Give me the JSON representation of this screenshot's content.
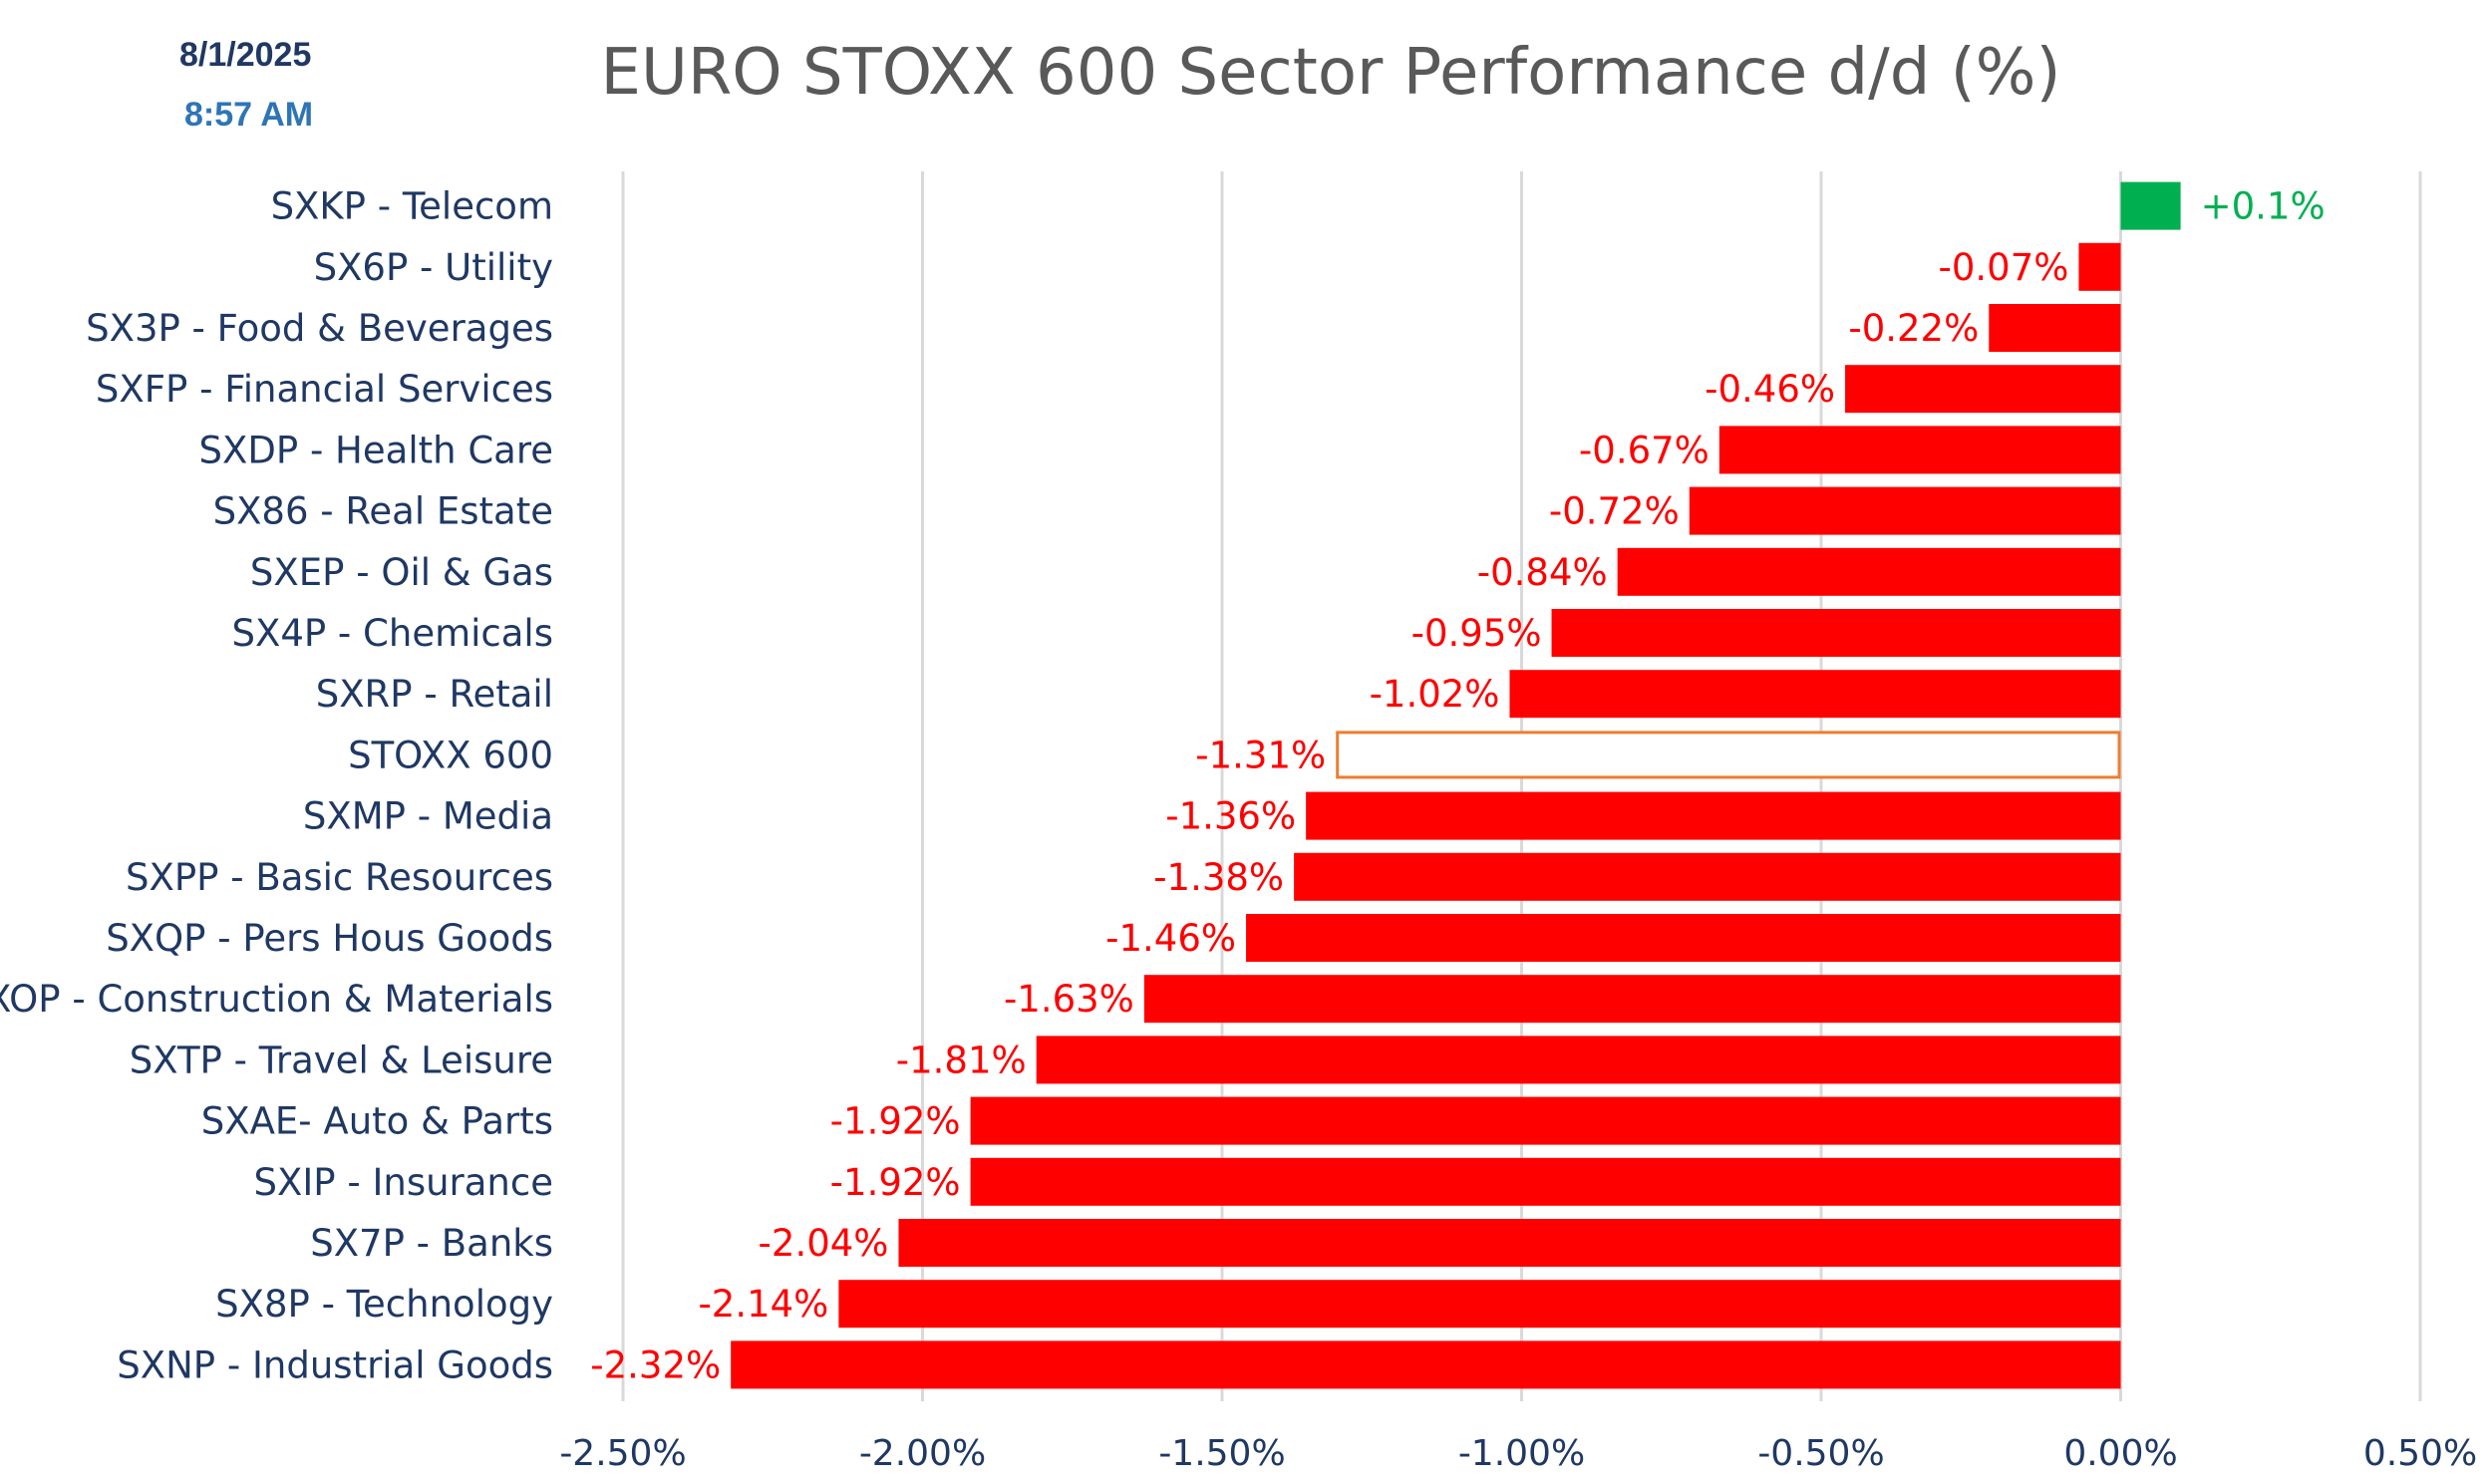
{
  "header": {
    "date": "8/1/2025",
    "time": "8:57 AM"
  },
  "chart_data": {
    "type": "bar",
    "orientation": "horizontal",
    "title": "EURO STOXX  600 Sector Performance d/d (%)",
    "categories": [
      "SXKP - Telecom",
      "SX6P - Utility",
      "SX3P - Food & Beverages",
      "SXFP - Financial Services",
      "SXDP - Health Care",
      "SX86 - Real Estate",
      "SXEP - Oil & Gas",
      "SX4P - Chemicals",
      "SXRP - Retail",
      "STOXX 600",
      "SXMP - Media",
      "SXPP - Basic Resources",
      "SXQP - Pers Hous Goods",
      "SXOP - Construction & Materials",
      "SXTP - Travel & Leisure",
      "SXAE- Auto & Parts",
      "SXIP - Insurance",
      "SX7P - Banks",
      "SX8P - Technology",
      "SXNP - Industrial Goods"
    ],
    "values": [
      0.1,
      -0.07,
      -0.22,
      -0.46,
      -0.67,
      -0.72,
      -0.84,
      -0.95,
      -1.02,
      -1.31,
      -1.36,
      -1.38,
      -1.46,
      -1.63,
      -1.81,
      -1.92,
      -1.92,
      -2.04,
      -2.14,
      -2.32
    ],
    "data_labels": [
      "+0.1%",
      "-0.07%",
      "-0.22%",
      "-0.46%",
      "-0.67%",
      "-0.72%",
      "-0.84%",
      "-0.95%",
      "-1.02%",
      "-1.31%",
      "-1.36%",
      "-1.38%",
      "-1.46%",
      "-1.63%",
      "-1.81%",
      "-1.92%",
      "-1.92%",
      "-2.04%",
      "-2.14%",
      "-2.32%"
    ],
    "highlight_category": "STOXX 600",
    "xlim": [
      -2.5,
      0.5
    ],
    "xticks": [
      -2.5,
      -2.0,
      -1.5,
      -1.0,
      -0.5,
      0.0,
      0.5
    ],
    "xtick_labels": [
      "-2.50%",
      "-2.00%",
      "-1.50%",
      "-1.00%",
      "-0.50%",
      "0.00%",
      "0.50%"
    ],
    "grid": "vertical",
    "legend": "none",
    "colors": {
      "positive": "#00b050",
      "negative": "#ff0000",
      "highlight_outline": "#ed7d31",
      "category_text": "#1f3864",
      "tick_text": "#1f3864",
      "gridline": "#d9d9d9",
      "title_text": "#595959"
    }
  }
}
